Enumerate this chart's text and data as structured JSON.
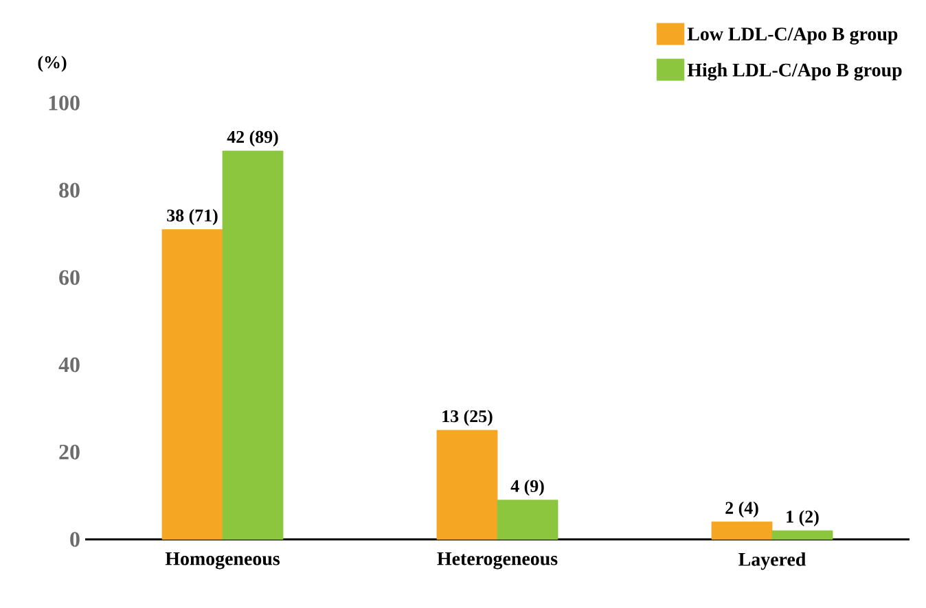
{
  "chart_data": {
    "type": "bar",
    "ylabel": "(%)",
    "categories": [
      "Homogeneous",
      "Heterogeneous",
      "Layered"
    ],
    "series": [
      {
        "name": "Low LDL-C/Apo B group",
        "color": "#f5a623",
        "values": [
          71,
          25,
          4
        ],
        "value_labels": [
          "38 (71)",
          "13 (25)",
          "2 (4)"
        ]
      },
      {
        "name": "High LDL-C/Apo B group",
        "color": "#8cc63f",
        "values": [
          89,
          9,
          2
        ],
        "value_labels": [
          "42 (89)",
          "4 (9)",
          "1 (2)"
        ]
      }
    ],
    "ylim": [
      0,
      100
    ],
    "yticks": [
      0,
      20,
      40,
      60,
      80,
      100
    ],
    "grid": false,
    "legend": "top right"
  }
}
